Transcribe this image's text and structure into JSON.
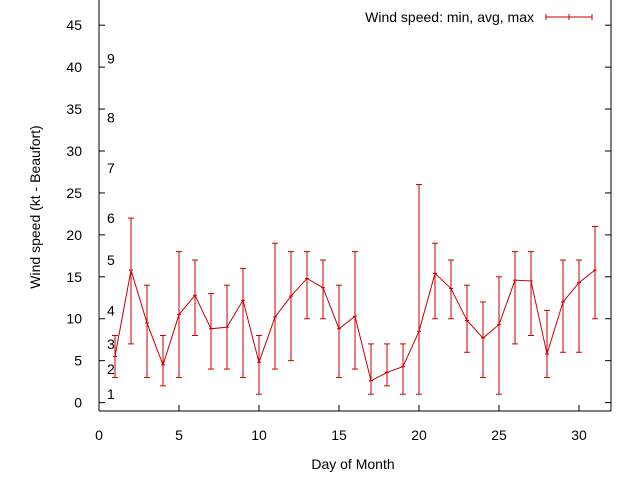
{
  "chart_data": {
    "type": "line",
    "title": "",
    "xlabel": "Day of Month",
    "ylabel": "Wind speed (kt - Beaufort)",
    "xlim": [
      0,
      32
    ],
    "ylim": [
      -1,
      48
    ],
    "xticks": [
      0,
      5,
      10,
      15,
      20,
      25,
      30
    ],
    "yticks": [
      0,
      5,
      10,
      15,
      20,
      25,
      30,
      35,
      40,
      45
    ],
    "grid": false,
    "legend": {
      "position": "top-right",
      "entries": [
        "Wind speed: min, avg, max"
      ]
    },
    "series": [
      {
        "name": "Wind speed: min, avg, max",
        "color": "#cc0000",
        "x": [
          1,
          2,
          3,
          4,
          5,
          6,
          7,
          8,
          9,
          10,
          11,
          12,
          13,
          14,
          15,
          16,
          17,
          18,
          19,
          20,
          21,
          22,
          23,
          24,
          25,
          26,
          27,
          28,
          29,
          30,
          31
        ],
        "avg": [
          5.5,
          15.8,
          9.5,
          4.5,
          10.5,
          12.8,
          8.8,
          9.0,
          12.2,
          4.8,
          10.2,
          12.7,
          14.8,
          13.7,
          8.8,
          10.3,
          2.6,
          3.6,
          4.3,
          8.5,
          15.4,
          13.6,
          9.8,
          7.7,
          9.3,
          14.6,
          14.5,
          5.8,
          12.0,
          14.3,
          15.8
        ],
        "min": [
          3,
          7,
          3,
          2,
          3,
          8,
          4,
          4,
          3,
          1,
          4,
          5,
          10,
          10,
          3,
          4,
          1,
          2,
          1,
          1,
          10,
          10,
          6,
          3,
          1,
          7,
          8,
          3,
          6,
          6,
          10
        ],
        "max": [
          8,
          22,
          14,
          8,
          18,
          17,
          13,
          14,
          16,
          8,
          19,
          18,
          18,
          17,
          14,
          18,
          7,
          7,
          7,
          26,
          19,
          17,
          14,
          12,
          15,
          18,
          18,
          11,
          17,
          17,
          21
        ]
      }
    ],
    "annotations": [
      {
        "text": "1",
        "y": 1
      },
      {
        "text": "2",
        "y": 4
      },
      {
        "text": "3",
        "y": 7
      },
      {
        "text": "4",
        "y": 11
      },
      {
        "text": "5",
        "y": 17
      },
      {
        "text": "6",
        "y": 22
      },
      {
        "text": "7",
        "y": 28
      },
      {
        "text": "8",
        "y": 34
      },
      {
        "text": "9",
        "y": 41
      }
    ]
  }
}
